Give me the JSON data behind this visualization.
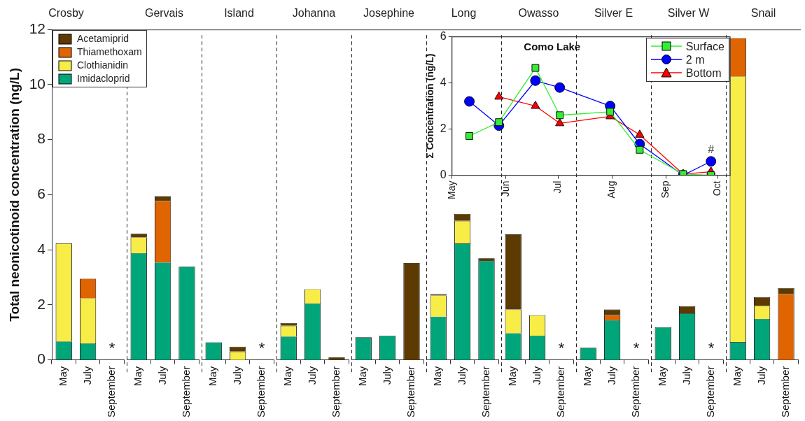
{
  "chart_data": [
    {
      "type": "bar",
      "title": "Crosby",
      "ylabel": "Total neonicotinoid concentration (ng/L)",
      "categories": [
        "May",
        "July",
        "September"
      ],
      "stacked": true,
      "ylim": [
        0,
        12
      ],
      "yticks": [
        0,
        2,
        4,
        6,
        8,
        10,
        12
      ],
      "legend": "top",
      "annotations": [
        "*"
      ],
      "series": [
        {
          "name": "Imidacloprid",
          "color": "#00a67a",
          "values": [
            0.67,
            0.6,
            null
          ]
        },
        {
          "name": "Clothianidin",
          "color": "#f8ec47",
          "values": [
            3.56,
            1.64,
            null
          ]
        },
        {
          "name": "Thiamethoxam",
          "color": "#e06400",
          "values": [
            null,
            0.71,
            null
          ]
        },
        {
          "name": "Acetamiprid",
          "color": "#5c3a00",
          "values": [
            null,
            null,
            null
          ]
        }
      ]
    },
    {
      "type": "bar",
      "title": "Gervais",
      "categories": [
        "May",
        "July",
        "September"
      ],
      "stacked": true,
      "ylim": [
        0,
        12
      ],
      "tick_labels": "x",
      "series": [
        {
          "color": "#00a67a",
          "values": [
            3.88,
            3.54,
            3.39
          ]
        },
        {
          "color": "#f8ec47",
          "values": [
            0.57,
            null,
            null
          ]
        },
        {
          "color": "#e06400",
          "values": [
            null,
            2.23,
            null
          ]
        },
        {
          "color": "#5c3a00",
          "values": [
            0.13,
            0.18,
            null
          ]
        }
      ]
    },
    {
      "type": "bar",
      "title": "Island",
      "categories": [
        "May",
        "July",
        "September"
      ],
      "stacked": true,
      "ylim": [
        0,
        12
      ],
      "tick_labels": "x",
      "annotations": [
        "*"
      ],
      "series": [
        {
          "color": "#00a67a",
          "values": [
            0.64,
            null,
            null
          ]
        },
        {
          "color": "#f8ec47",
          "values": [
            null,
            0.3,
            null
          ]
        },
        {
          "color": "#5c3a00",
          "values": [
            null,
            0.18,
            null
          ]
        }
      ]
    },
    {
      "type": "bar",
      "title": "Johanna",
      "categories": [
        "May",
        "July",
        "September"
      ],
      "stacked": true,
      "ylim": [
        0,
        12
      ],
      "tick_labels": "x",
      "series": [
        {
          "color": "#00a67a",
          "values": [
            0.85,
            2.05,
            null
          ]
        },
        {
          "color": "#f8ec47",
          "values": [
            0.39,
            0.52,
            null
          ]
        },
        {
          "color": "#5c3a00",
          "values": [
            0.1,
            null,
            0.09
          ]
        }
      ]
    },
    {
      "type": "bar",
      "title": "Josephine",
      "categories": [
        "May",
        "July",
        "September"
      ],
      "stacked": true,
      "ylim": [
        0,
        12
      ],
      "tick_labels": "x",
      "series": [
        {
          "color": "#00a67a",
          "values": [
            0.82,
            0.88,
            null
          ]
        },
        {
          "color": "#5c3a00",
          "values": [
            null,
            null,
            3.52
          ]
        }
      ]
    },
    {
      "type": "bar",
      "title": "Long",
      "categories": [
        "May",
        "July",
        "September"
      ],
      "stacked": true,
      "ylim": [
        0,
        12
      ],
      "tick_labels": "x",
      "series": [
        {
          "color": "#00a67a",
          "values": [
            1.57,
            4.23,
            3.6
          ]
        },
        {
          "color": "#f8ec47",
          "values": [
            0.77,
            0.82,
            null
          ]
        },
        {
          "color": "#5c3a00",
          "values": [
            0.05,
            0.25,
            0.09
          ]
        }
      ]
    },
    {
      "type": "bar",
      "title": "Owasso",
      "categories": [
        "May",
        "July",
        "September"
      ],
      "stacked": true,
      "ylim": [
        0,
        12
      ],
      "tick_labels": "x",
      "annotations": [
        "*"
      ],
      "series": [
        {
          "color": "#00a67a",
          "values": [
            0.97,
            0.88,
            null
          ]
        },
        {
          "color": "#f8ec47",
          "values": [
            0.86,
            0.74,
            null
          ]
        },
        {
          "color": "#5c3a00",
          "values": [
            2.73,
            null,
            null
          ]
        }
      ]
    },
    {
      "type": "bar",
      "title": "Silver E",
      "categories": [
        "May",
        "July",
        "September"
      ],
      "stacked": true,
      "ylim": [
        0,
        12
      ],
      "tick_labels": "x",
      "annotations": [
        "*"
      ],
      "series": [
        {
          "color": "#00a67a",
          "values": [
            0.44,
            1.44,
            null
          ]
        },
        {
          "color": "#e06400",
          "values": [
            null,
            0.18,
            null
          ]
        },
        {
          "color": "#5c3a00",
          "values": [
            null,
            0.21,
            null
          ]
        }
      ]
    },
    {
      "type": "bar",
      "title": "Silver W",
      "categories": [
        "May",
        "July",
        "September"
      ],
      "stacked": true,
      "ylim": [
        0,
        12
      ],
      "tick_labels": "x",
      "annotations": [
        "*"
      ],
      "series": [
        {
          "color": "#00a67a",
          "values": [
            1.19,
            1.69,
            null
          ]
        },
        {
          "color": "#5c3a00",
          "values": [
            null,
            0.26,
            null
          ]
        }
      ]
    },
    {
      "type": "bar",
      "title": "Snail",
      "categories": [
        "May",
        "July",
        "September"
      ],
      "stacked": true,
      "ylim": [
        0,
        12
      ],
      "tick_labels": "x",
      "series": [
        {
          "color": "#00a67a",
          "values": [
            0.65,
            1.49,
            null
          ]
        },
        {
          "color": "#f8ec47",
          "values": [
            9.65,
            0.47,
            null
          ]
        },
        {
          "color": "#e06400",
          "values": [
            1.39,
            null,
            2.4
          ]
        },
        {
          "color": "#5c3a00",
          "values": [
            null,
            0.32,
            0.21
          ]
        }
      ]
    },
    {
      "type": "line",
      "title": "Como Lake",
      "ylabel": "Σ Concentration (ng/L)",
      "x": [
        "--05-11",
        "--05-28",
        "--06-18",
        "--07-02",
        "--07-31",
        "--08-17",
        "--09-11",
        "--09-27"
      ],
      "xlim": [
        "--05-01",
        "--10-08"
      ],
      "xticks": [
        {
          "value": "--05-01",
          "label": "May"
        },
        {
          "value": "--06-01",
          "label": "Jun"
        },
        {
          "value": "--07-01",
          "label": "Jul"
        },
        {
          "value": "--08-01",
          "label": "Aug"
        },
        {
          "value": "--09-01",
          "label": "Sep"
        },
        {
          "value": "--10-01",
          "label": "Oct"
        }
      ],
      "ylim": [
        0,
        6
      ],
      "yticks": [
        0,
        2,
        4,
        6
      ],
      "legend": "top right",
      "annotations": [
        {
          "text": "#",
          "x": "--09-27",
          "y": 0.6
        }
      ],
      "series": [
        {
          "name": "Surface",
          "color": "#33ee33",
          "marker": "square",
          "values": [
            1.7,
            2.3,
            4.65,
            2.6,
            2.75,
            1.1,
            0.05,
            0
          ]
        },
        {
          "name": "2 m",
          "color": "#0000ff",
          "marker": "circle",
          "values": [
            3.2,
            2.15,
            4.1,
            3.8,
            3.0,
            1.35,
            0,
            0.6
          ]
        },
        {
          "name": "Bottom",
          "color": "#ff0000",
          "marker": "triangle",
          "values": [
            null,
            3.4,
            3.0,
            2.25,
            2.55,
            1.75,
            0.05,
            0.15
          ]
        }
      ]
    }
  ]
}
